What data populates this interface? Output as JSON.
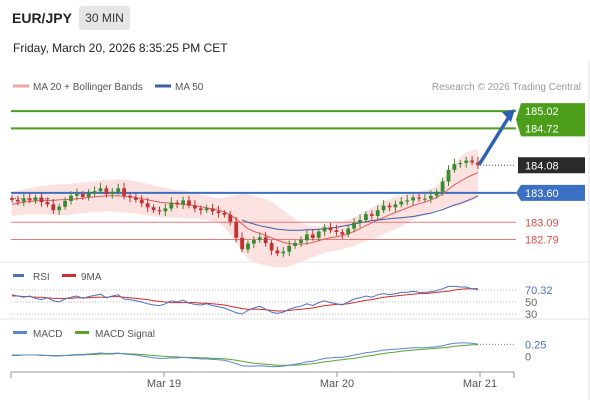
{
  "header": {
    "pair": "EUR/JPY",
    "timeframe": "30 MIN",
    "datetime": "Friday, March 20, 2026 8:35:25 PM CET"
  },
  "legend": {
    "ma20_label": "MA 20 + Bollinger Bands",
    "ma50_label": "MA 50",
    "watermark": "Research © 2026 Trading Central"
  },
  "colors": {
    "green_level": "#4c9e1a",
    "blue_level": "#3a6fc4",
    "red_level": "#e8797a",
    "current_price_bg": "#2a2a2a",
    "arrow": "#2d62b0",
    "bollinger_fill": "#fbdcdc",
    "ma50": "#3a5ea8",
    "ma20": "#e45a5a",
    "rsi": "#4d6fbf",
    "rsi_ma": "#d42b2b",
    "macd": "#5b83d6",
    "macd_signal": "#5aa52d",
    "candle_up": "#3a8a2f",
    "candle_down": "#c23232"
  },
  "chart_data": [
    {
      "type": "candlestick",
      "pair": "EUR/JPY",
      "ylim": [
        182.4,
        185.3
      ],
      "x_ticks": [
        "Mar 19",
        "Mar 20",
        "Mar 21"
      ],
      "current_price": 184.08,
      "levels": [
        {
          "value": 185.02,
          "label": "185.02",
          "style": "green"
        },
        {
          "value": 184.72,
          "label": "184.72",
          "style": "green"
        },
        {
          "value": 183.6,
          "label": "183.60",
          "style": "blue"
        },
        {
          "value": 183.09,
          "label": "183.09",
          "style": "red"
        },
        {
          "value": 182.79,
          "label": "182.79",
          "style": "red"
        }
      ],
      "closes": [
        183.48,
        183.45,
        183.5,
        183.47,
        183.52,
        183.44,
        183.4,
        183.3,
        183.36,
        183.46,
        183.55,
        183.58,
        183.53,
        183.6,
        183.63,
        183.68,
        183.58,
        183.62,
        183.68,
        183.55,
        183.52,
        183.48,
        183.42,
        183.35,
        183.3,
        183.28,
        183.33,
        183.43,
        183.4,
        183.47,
        183.38,
        183.33,
        183.3,
        183.33,
        183.28,
        183.25,
        183.22,
        183.1,
        182.82,
        182.62,
        182.72,
        182.78,
        182.83,
        182.73,
        182.6,
        182.55,
        182.58,
        182.68,
        182.73,
        182.78,
        182.88,
        182.82,
        182.93,
        183.0,
        182.95,
        182.92,
        182.88,
        182.98,
        183.08,
        183.13,
        183.23,
        183.2,
        183.3,
        183.38,
        183.35,
        183.4,
        183.45,
        183.47,
        183.52,
        183.5,
        183.5,
        183.55,
        183.62,
        183.8,
        184.0,
        184.1,
        184.12,
        184.16,
        184.13,
        184.08
      ],
      "ma20": [
        183.4,
        183.42,
        183.44,
        183.45,
        183.46,
        183.47,
        183.47,
        183.47,
        183.48,
        183.48,
        183.49,
        183.5,
        183.51,
        183.52,
        183.53,
        183.54,
        183.55,
        183.55,
        183.55,
        183.54,
        183.53,
        183.52,
        183.5,
        183.48,
        183.46,
        183.44,
        183.43,
        183.42,
        183.41,
        183.4,
        183.39,
        183.38,
        183.36,
        183.34,
        183.32,
        183.3,
        183.27,
        183.22,
        183.15,
        183.06,
        182.98,
        182.93,
        182.9,
        182.86,
        182.82,
        182.78,
        182.74,
        182.72,
        182.71,
        182.71,
        182.72,
        182.74,
        182.77,
        182.8,
        182.82,
        182.84,
        182.86,
        182.89,
        182.93,
        182.98,
        183.03,
        183.08,
        183.13,
        183.17,
        183.22,
        183.26,
        183.3,
        183.34,
        183.38,
        183.41,
        183.44,
        183.48,
        183.52,
        183.58,
        183.66,
        183.74,
        183.8,
        183.86,
        183.91,
        183.95
      ],
      "ma50": [
        183.56,
        183.56,
        183.56,
        183.55,
        183.55,
        183.55,
        183.54,
        183.54,
        183.54,
        183.54,
        183.53,
        183.53,
        183.52,
        183.52,
        183.51,
        183.51,
        183.5,
        183.5,
        183.49,
        183.49,
        183.48,
        183.47,
        183.47,
        183.46,
        183.45,
        183.44,
        183.43,
        183.42,
        183.41,
        183.4,
        183.39,
        183.37,
        183.35,
        183.33,
        183.31,
        183.28,
        183.25,
        183.21,
        183.17,
        183.13,
        183.09,
        183.06,
        183.03,
        183.01,
        182.99,
        182.97,
        182.96,
        182.95,
        182.95,
        182.95,
        182.96,
        182.96,
        182.97,
        182.98,
        182.99,
        183.0,
        183.02,
        183.04,
        183.06,
        183.08,
        183.1,
        183.12,
        183.13,
        183.14,
        183.15,
        183.16,
        183.17,
        183.18,
        183.19,
        183.21,
        183.23,
        183.25,
        183.28,
        183.31,
        183.35,
        183.39,
        183.42,
        183.46,
        183.5,
        183.55
      ],
      "band_upper": [
        183.62,
        183.64,
        183.66,
        183.68,
        183.7,
        183.72,
        183.73,
        183.74,
        183.75,
        183.75,
        183.76,
        183.77,
        183.78,
        183.79,
        183.8,
        183.82,
        183.83,
        183.83,
        183.84,
        183.83,
        183.82,
        183.8,
        183.78,
        183.76,
        183.73,
        183.71,
        183.69,
        183.67,
        183.65,
        183.64,
        183.62,
        183.6,
        183.57,
        183.55,
        183.52,
        183.51,
        183.52,
        183.54,
        183.57,
        183.59,
        183.58,
        183.55,
        183.52,
        183.49,
        183.44,
        183.38,
        183.3,
        183.22,
        183.14,
        183.08,
        183.04,
        183.02,
        183.02,
        183.04,
        183.07,
        183.09,
        183.1,
        183.14,
        183.18,
        183.23,
        183.29,
        183.34,
        183.4,
        183.45,
        183.49,
        183.53,
        183.56,
        183.58,
        183.6,
        183.62,
        183.64,
        183.67,
        183.72,
        183.82,
        183.98,
        184.12,
        184.22,
        184.3,
        184.34,
        184.36
      ],
      "band_lower": [
        183.2,
        183.21,
        183.22,
        183.23,
        183.23,
        183.23,
        183.22,
        183.21,
        183.21,
        183.21,
        183.22,
        183.24,
        183.25,
        183.26,
        183.27,
        183.27,
        183.28,
        183.28,
        183.27,
        183.26,
        183.25,
        183.24,
        183.22,
        183.2,
        183.19,
        183.18,
        183.17,
        183.17,
        183.17,
        183.16,
        183.16,
        183.15,
        183.14,
        183.13,
        183.11,
        183.08,
        183.0,
        182.88,
        182.74,
        182.58,
        182.46,
        182.4,
        182.36,
        182.34,
        182.32,
        182.31,
        182.3,
        182.32,
        182.36,
        182.4,
        182.44,
        182.48,
        182.52,
        182.56,
        182.58,
        182.6,
        182.62,
        182.65,
        182.68,
        182.72,
        182.76,
        182.8,
        182.84,
        182.88,
        182.93,
        182.97,
        183.02,
        183.08,
        183.14,
        183.18,
        183.22,
        183.26,
        183.3,
        183.33,
        183.34,
        183.36,
        183.38,
        183.42,
        183.46,
        183.52
      ]
    },
    {
      "type": "line",
      "name": "RSI",
      "ylim": [
        25,
        80
      ],
      "y_ticks": [
        70.32,
        50,
        30
      ],
      "current_value": 70.32,
      "series": [
        {
          "name": "RSI",
          "values": [
            62,
            60,
            58,
            60,
            56,
            54,
            57,
            52,
            50,
            55,
            58,
            60,
            56,
            59,
            61,
            63,
            57,
            60,
            62,
            55,
            54,
            52,
            50,
            47,
            45,
            44,
            47,
            52,
            50,
            53,
            48,
            46,
            45,
            47,
            44,
            42,
            40,
            36,
            32,
            30,
            36,
            40,
            43,
            38,
            33,
            31,
            33,
            38,
            41,
            43,
            47,
            44,
            49,
            52,
            49,
            47,
            45,
            50,
            55,
            57,
            60,
            58,
            62,
            64,
            62,
            64,
            66,
            66,
            68,
            66,
            66,
            67,
            69,
            72,
            76,
            76,
            75,
            75,
            72,
            70.32
          ]
        },
        {
          "name": "9MA",
          "values": [
            60,
            60,
            59,
            59,
            58,
            58,
            57,
            56,
            56,
            56,
            56,
            57,
            57,
            57,
            58,
            58,
            58,
            59,
            59,
            58,
            57,
            56,
            55,
            54,
            52,
            51,
            50,
            49,
            49,
            49,
            49,
            49,
            48,
            48,
            47,
            46,
            45,
            43,
            41,
            39,
            38,
            38,
            38,
            37,
            36,
            35,
            35,
            36,
            37,
            38,
            39,
            40,
            42,
            44,
            45,
            46,
            46,
            47,
            49,
            51,
            53,
            54,
            56,
            58,
            59,
            60,
            61,
            62,
            63,
            64,
            64,
            65,
            66,
            67,
            68,
            70,
            71,
            72,
            72,
            72
          ]
        }
      ]
    },
    {
      "type": "line",
      "name": "MACD",
      "ylim": [
        -0.3,
        0.38
      ],
      "y_ticks": [
        0.25,
        0
      ],
      "current_value": 0.25,
      "series": [
        {
          "name": "MACD",
          "values": [
            0.02,
            0.02,
            0.03,
            0.03,
            0.03,
            0.02,
            0.02,
            0.01,
            0.01,
            0.02,
            0.03,
            0.04,
            0.04,
            0.05,
            0.06,
            0.07,
            0.06,
            0.06,
            0.07,
            0.05,
            0.04,
            0.03,
            0.01,
            -0.01,
            -0.03,
            -0.04,
            -0.04,
            -0.03,
            -0.03,
            -0.02,
            -0.03,
            -0.04,
            -0.05,
            -0.05,
            -0.06,
            -0.07,
            -0.08,
            -0.11,
            -0.15,
            -0.19,
            -0.2,
            -0.2,
            -0.19,
            -0.2,
            -0.21,
            -0.21,
            -0.2,
            -0.18,
            -0.16,
            -0.14,
            -0.11,
            -0.1,
            -0.07,
            -0.04,
            -0.03,
            -0.02,
            -0.02,
            0.0,
            0.03,
            0.05,
            0.08,
            0.09,
            0.11,
            0.13,
            0.14,
            0.15,
            0.16,
            0.17,
            0.18,
            0.18,
            0.18,
            0.19,
            0.2,
            0.22,
            0.25,
            0.27,
            0.28,
            0.28,
            0.27,
            0.25
          ]
        },
        {
          "name": "MACD Signal",
          "values": [
            0.03,
            0.03,
            0.03,
            0.03,
            0.03,
            0.03,
            0.02,
            0.02,
            0.02,
            0.02,
            0.02,
            0.03,
            0.03,
            0.04,
            0.04,
            0.05,
            0.05,
            0.05,
            0.06,
            0.06,
            0.05,
            0.05,
            0.04,
            0.03,
            0.02,
            0.01,
            0.0,
            -0.01,
            -0.01,
            -0.02,
            -0.02,
            -0.02,
            -0.03,
            -0.03,
            -0.04,
            -0.04,
            -0.05,
            -0.06,
            -0.08,
            -0.1,
            -0.12,
            -0.14,
            -0.15,
            -0.16,
            -0.17,
            -0.18,
            -0.18,
            -0.18,
            -0.18,
            -0.17,
            -0.16,
            -0.15,
            -0.13,
            -0.11,
            -0.1,
            -0.08,
            -0.07,
            -0.05,
            -0.04,
            -0.02,
            0.0,
            0.02,
            0.04,
            0.06,
            0.08,
            0.09,
            0.11,
            0.12,
            0.13,
            0.14,
            0.15,
            0.16,
            0.17,
            0.18,
            0.19,
            0.21,
            0.22,
            0.23,
            0.24,
            0.24
          ]
        }
      ]
    }
  ],
  "sub_legends": {
    "rsi_label": "RSI",
    "rsi_ma_label": "9MA",
    "macd_label": "MACD",
    "macd_signal_label": "MACD Signal"
  }
}
